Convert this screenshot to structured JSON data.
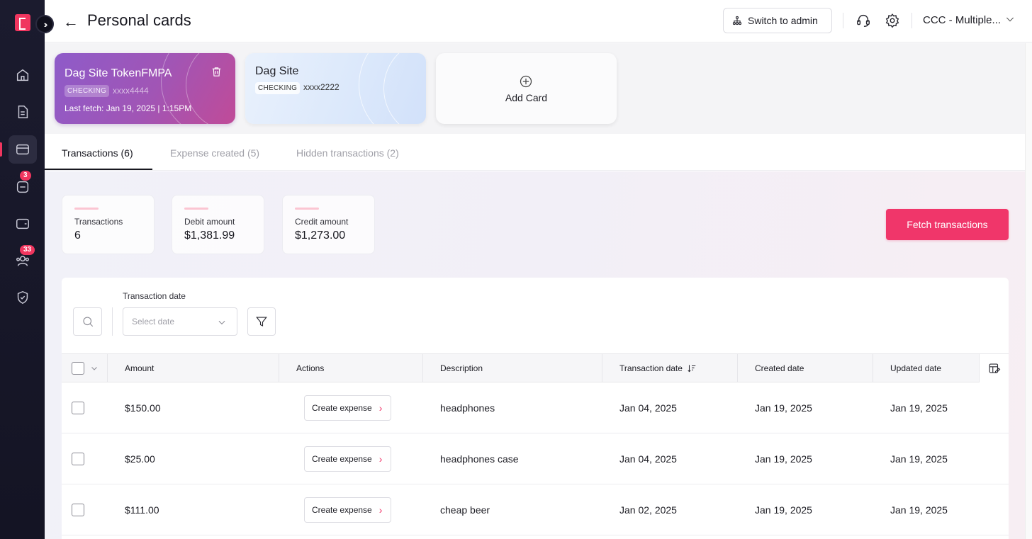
{
  "header": {
    "title": "Personal cards",
    "switch_label": "Switch to admin",
    "company": "CCC - Multiple..."
  },
  "sidebar": {
    "badges": {
      "documents": "3",
      "people": "33"
    }
  },
  "cards": [
    {
      "name": "Dag Site TokenFMPA",
      "type": "CHECKING",
      "mask": "xxxx4444",
      "last_fetch": "Last fetch: Jan 19, 2025 | 1:15PM"
    },
    {
      "name": "Dag Site",
      "type": "CHECKING",
      "mask": "xxxx2222"
    }
  ],
  "add_card_label": "Add Card",
  "tabs": [
    {
      "label": "Transactions (6)"
    },
    {
      "label": "Expense created (5)"
    },
    {
      "label": "Hidden transactions (2)"
    }
  ],
  "stats": [
    {
      "label": "Transactions",
      "value": "6"
    },
    {
      "label": "Debit amount",
      "value": "$1,381.99"
    },
    {
      "label": "Credit amount",
      "value": "$1,273.00"
    }
  ],
  "fetch_label": "Fetch transactions",
  "filters": {
    "date_label": "Transaction date",
    "date_placeholder": "Select date"
  },
  "table": {
    "columns": [
      "Amount",
      "Actions",
      "Description",
      "Transaction date",
      "Created date",
      "Updated date"
    ],
    "action_label": "Create expense",
    "rows": [
      {
        "amount": "$150.00",
        "description": "headphones",
        "transaction_date": "Jan 04, 2025",
        "created": "Jan 19, 2025",
        "updated": "Jan 19, 2025"
      },
      {
        "amount": "$25.00",
        "description": "headphones case",
        "transaction_date": "Jan 04, 2025",
        "created": "Jan 19, 2025",
        "updated": "Jan 19, 2025"
      },
      {
        "amount": "$111.00",
        "description": "cheap beer",
        "transaction_date": "Jan 02, 2025",
        "created": "Jan 19, 2025",
        "updated": "Jan 19, 2025"
      }
    ]
  },
  "colors": {
    "accent": "#f0366a",
    "sidebar": "#1b1b2e"
  }
}
